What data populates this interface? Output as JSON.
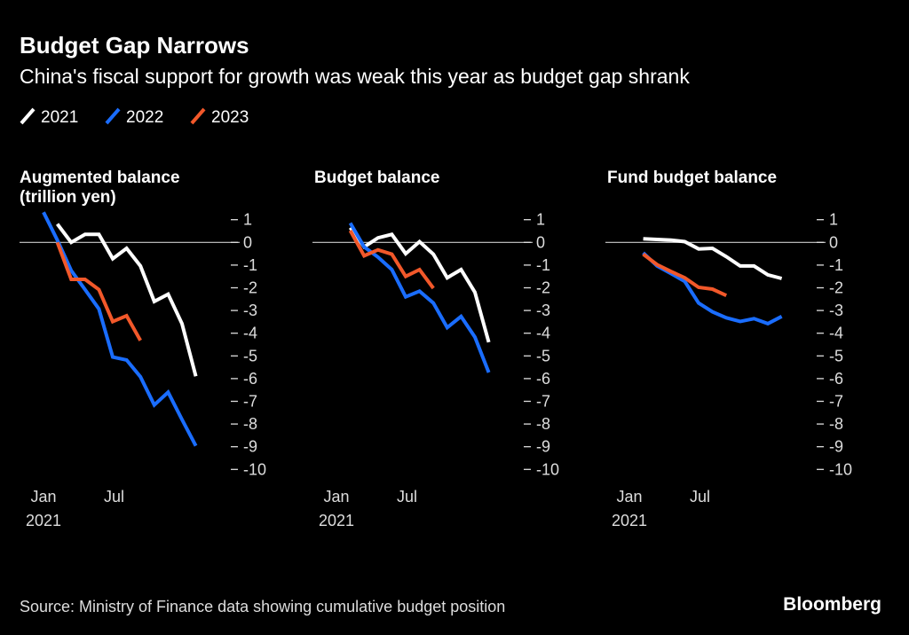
{
  "chart_data": {
    "type": "line",
    "title": "Budget Gap Narrows",
    "subtitle": "China's fiscal support for growth was weak this year as budget gap shrank",
    "source": "Source: Ministry of Finance data showing cumulative budget position",
    "brand": "Bloomberg",
    "legend": [
      {
        "name": "2021",
        "color": "#ffffff"
      },
      {
        "name": "2022",
        "color": "#1a6dff"
      },
      {
        "name": "2023",
        "color": "#f2582a"
      }
    ],
    "ylim": [
      -10,
      1
    ],
    "yticks": [
      {
        "v": 1,
        "label": "1"
      },
      {
        "v": 0,
        "label": "0"
      },
      {
        "v": -1,
        "label": "-1"
      },
      {
        "v": -2,
        "label": "-2"
      },
      {
        "v": -3,
        "label": "-3"
      },
      {
        "v": -4,
        "label": "-4"
      },
      {
        "v": -5,
        "label": "-5"
      },
      {
        "v": -6,
        "label": "-6"
      },
      {
        "v": -7,
        "label": "-7"
      },
      {
        "v": -8,
        "label": "-8"
      },
      {
        "v": -9,
        "label": "-9"
      },
      {
        "v": -10,
        "label": "-10"
      }
    ],
    "xlabel_note": "month index, 1 = Jan",
    "xticks": [
      {
        "v": 1,
        "label": "Jan",
        "sub": "2021"
      },
      {
        "v": 6.1,
        "label": "Jul",
        "sub": ""
      }
    ],
    "panels": [
      {
        "title": "Augmented balance",
        "title2": "(trillion yen)",
        "series": [
          {
            "name": "2021",
            "start": 2,
            "values": [
              0.81,
              0,
              0.35,
              0.35,
              -0.72,
              -0.26,
              -1.04,
              -2.6,
              -2.28,
              -3.58,
              -5.9
            ]
          },
          {
            "name": "2022",
            "start": 1,
            "values": [
              1.33,
              0.1,
              -1.24,
              -2.08,
              -2.93,
              -5.05,
              -5.18,
              -5.92,
              -7.16,
              -6.6,
              -7.8,
              -8.96
            ]
          },
          {
            "name": "2023",
            "start": 2,
            "values": [
              0,
              -1.63,
              -1.63,
              -2.08,
              -3.49,
              -3.23,
              -4.32
            ]
          }
        ]
      },
      {
        "title": "Budget balance",
        "title2": "",
        "series": [
          {
            "name": "2021",
            "start": 2,
            "values": [
              0.65,
              -0.2,
              0.2,
              0.35,
              -0.5,
              0.03,
              -0.52,
              -1.56,
              -1.2,
              -2.2,
              -4.4
            ]
          },
          {
            "name": "2022",
            "start": 2,
            "values": [
              0.85,
              -0.2,
              -0.65,
              -1.2,
              -2.4,
              -2.15,
              -2.67,
              -3.75,
              -3.26,
              -4.17,
              -5.73
            ]
          },
          {
            "name": "2023",
            "start": 2,
            "values": [
              0.52,
              -0.59,
              -0.33,
              -0.52,
              -1.5,
              -1.2,
              -2.02
            ]
          }
        ]
      },
      {
        "title": "Fund budget balance",
        "title2": "",
        "series": [
          {
            "name": "2021",
            "start": 2,
            "values": [
              0.16,
              0.13,
              0.1,
              0.03,
              -0.29,
              -0.26,
              -0.63,
              -1.04,
              -1.04,
              -1.43,
              -1.59
            ]
          },
          {
            "name": "2022",
            "start": 2,
            "values": [
              -0.46,
              -1.04,
              -1.37,
              -1.72,
              -2.67,
              -3.06,
              -3.32,
              -3.48,
              -3.36,
              -3.58,
              -3.26
            ]
          },
          {
            "name": "2023",
            "start": 2,
            "values": [
              -0.52,
              -0.98,
              -1.28,
              -1.56,
              -1.98,
              -2.06,
              -2.34
            ]
          }
        ]
      }
    ]
  }
}
